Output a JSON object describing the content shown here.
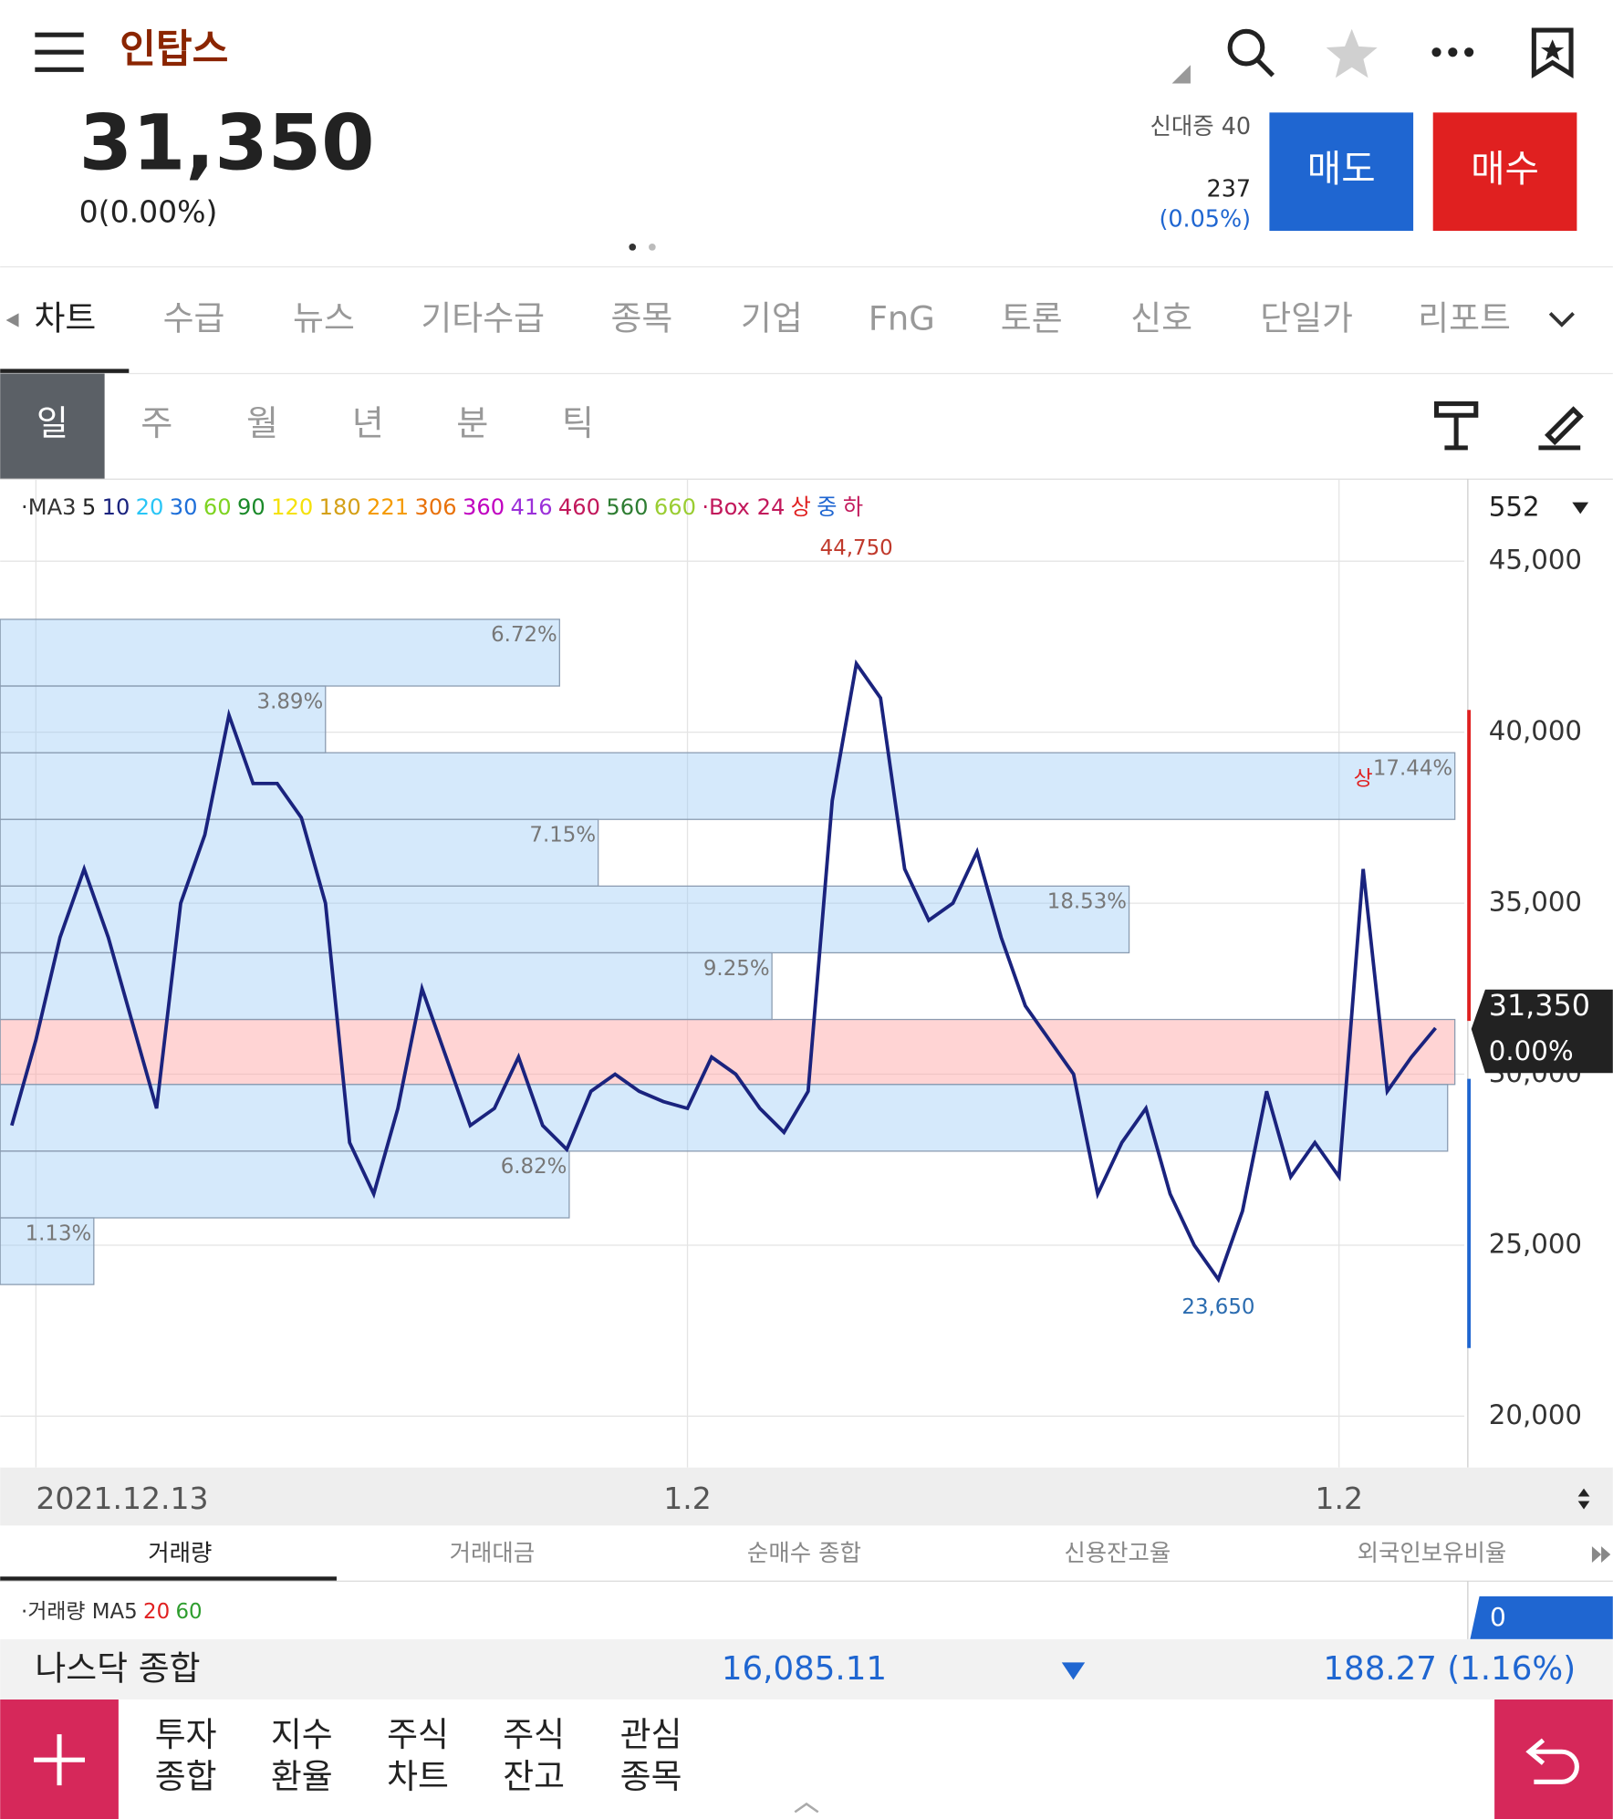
{
  "header": {
    "title": "인탑스",
    "price": "31,350",
    "change": "0(0.00%)",
    "credit": "신대증 40",
    "volume": "237",
    "volume_pct": "(0.05%)",
    "sell": "매도",
    "buy": "매수"
  },
  "tabs": [
    "차트",
    "수급",
    "뉴스",
    "기타수급",
    "종목",
    "기업",
    "FnG",
    "토론",
    "신호",
    "단일가",
    "리포트"
  ],
  "periods": [
    "일",
    "주",
    "월",
    "년",
    "분",
    "틱"
  ],
  "ma_legend": [
    {
      "text": "·MA3",
      "color": "#333333"
    },
    {
      "text": "5",
      "color": "#222222"
    },
    {
      "text": "10",
      "color": "#1a237e"
    },
    {
      "text": "20",
      "color": "#29c5f6"
    },
    {
      "text": "30",
      "color": "#1e6fd9"
    },
    {
      "text": "60",
      "color": "#7ed321"
    },
    {
      "text": "90",
      "color": "#1b8a2a"
    },
    {
      "text": "120",
      "color": "#f5e10a"
    },
    {
      "text": "180",
      "color": "#d4a017"
    },
    {
      "text": "221",
      "color": "#f59b00"
    },
    {
      "text": "306",
      "color": "#e8710a"
    },
    {
      "text": "360",
      "color": "#c000c0"
    },
    {
      "text": "416",
      "color": "#9b30d9"
    },
    {
      "text": "460",
      "color": "#c2185b"
    },
    {
      "text": "560",
      "color": "#2e7d32"
    },
    {
      "text": "660",
      "color": "#9acd32"
    },
    {
      "text": "·Box 24",
      "color": "#c2185b"
    },
    {
      "text": "상",
      "color": "#e02020"
    },
    {
      "text": "중",
      "color": "#1f66d1"
    },
    {
      "text": "하",
      "color": "#c2185b"
    }
  ],
  "chart_data": {
    "type": "line",
    "series": [
      {
        "name": "종가",
        "color": "#1a237e",
        "values": [
          28500,
          31000,
          34000,
          36000,
          34000,
          31500,
          29000,
          35000,
          37000,
          40500,
          38500,
          38500,
          37500,
          35000,
          28000,
          26500,
          29000,
          32500,
          30500,
          28500,
          29000,
          30500,
          28500,
          27800,
          29500,
          30000,
          29500,
          29200,
          29000,
          30500,
          30000,
          29000,
          28300,
          29500,
          38000,
          42000,
          41000,
          36000,
          34500,
          35000,
          36500,
          34000,
          32000,
          31000,
          30000,
          26500,
          28000,
          29000,
          26500,
          25000,
          24000,
          26000,
          29500,
          27000,
          28000,
          27000,
          36000,
          29500,
          30500,
          31350
        ]
      }
    ],
    "ylim": [
      18500,
      47400
    ],
    "yticks": [
      {
        "value": 20000,
        "label": "20,000"
      },
      {
        "value": 25000,
        "label": "25,000"
      },
      {
        "value": 30000,
        "label": "30,000"
      },
      {
        "value": 35000,
        "label": "35,000"
      },
      {
        "value": 40000,
        "label": "40,000"
      },
      {
        "value": 45000,
        "label": "45,000"
      }
    ],
    "x_labels": [
      {
        "index": 1,
        "label": "2021.12.13"
      },
      {
        "index": 28,
        "label": "1.2"
      },
      {
        "index": 55,
        "label": "1.2"
      }
    ],
    "boxes": [
      {
        "label": "6.72%",
        "top": 43300,
        "bottom": 41350,
        "end": 22.7
      },
      {
        "label": "3.89%",
        "top": 41350,
        "bottom": 39400,
        "end": 13
      },
      {
        "label": "17.44%",
        "top": 39400,
        "bottom": 37450,
        "end": 59.8
      },
      {
        "label": "7.15%",
        "top": 37450,
        "bottom": 35500,
        "end": 24.3
      },
      {
        "label": "18.53%",
        "top": 35500,
        "bottom": 33550,
        "end": 46.3
      },
      {
        "label": "9.25%",
        "top": 33550,
        "bottom": 31600,
        "end": 31.5
      },
      {
        "top": 31600,
        "bottom": 29700,
        "end": 59.8,
        "current": true
      },
      {
        "top": 29700,
        "bottom": 27750,
        "end": 59.5
      },
      {
        "label": "6.82%",
        "top": 27750,
        "bottom": 25800,
        "end": 23.1
      },
      {
        "label": "1.13%",
        "top": 25800,
        "bottom": 23850,
        "end": 3.4
      }
    ],
    "annotations": [
      {
        "index": 35,
        "value": 44750,
        "label": "44,750",
        "color": "#c0392b"
      },
      {
        "index": 50,
        "value": 23650,
        "label": "23,650",
        "color": "#2b6cb0"
      },
      {
        "index": 56,
        "value": 38000,
        "label": "상",
        "color": "#e02020"
      }
    ],
    "last": {
      "price": "31,350",
      "pct": "0.00%"
    },
    "count": "552"
  },
  "volume_tabs": [
    "거래량",
    "거래대금",
    "순매수 종합",
    "신용잔고율",
    "외국인보유비율"
  ],
  "volume_legend": [
    {
      "text": "·거래량 MA5",
      "color": "#333333"
    },
    {
      "text": "20",
      "color": "#e02020"
    },
    {
      "text": "60",
      "color": "#2e9d2e"
    }
  ],
  "volume_value": "0",
  "ticker": {
    "name": "나스닥 종합",
    "value": "16,085.11",
    "change": "188.27 (1.16%)"
  },
  "nav": [
    [
      "투자",
      "종합"
    ],
    [
      "지수",
      "환율"
    ],
    [
      "주식",
      "차트"
    ],
    [
      "주식",
      "잔고"
    ],
    [
      "관심",
      "종목"
    ]
  ]
}
